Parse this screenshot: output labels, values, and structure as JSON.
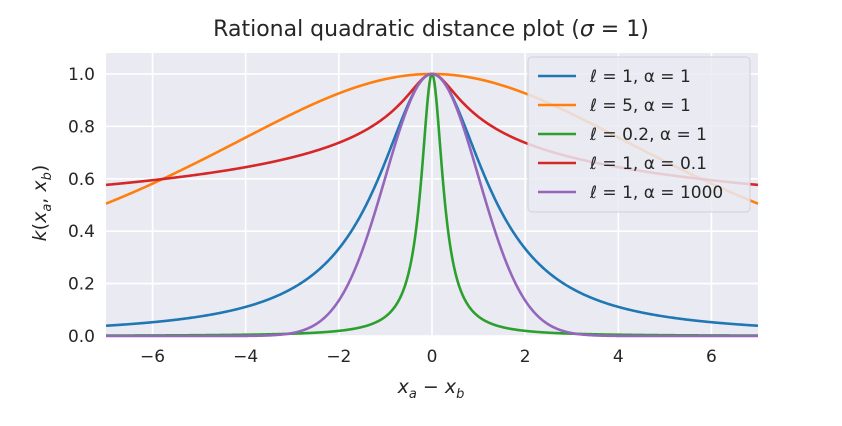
{
  "chart_data": {
    "type": "line",
    "title": "Rational quadratic distance plot (σ = 1)",
    "xlabel": "xa − xb",
    "ylabel": "k(xa, xb)",
    "xlim": [
      -7,
      7
    ],
    "ylim": [
      0,
      1.08
    ],
    "xticks": [
      -6,
      -4,
      -2,
      0,
      2,
      4,
      6
    ],
    "xtick_labels": [
      "−6",
      "−4",
      "−2",
      "0",
      "2",
      "4",
      "6"
    ],
    "yticks": [
      0,
      0.2,
      0.4,
      0.6,
      0.8,
      1.0
    ],
    "ytick_labels": [
      "0.0",
      "0.2",
      "0.4",
      "0.6",
      "0.8",
      "1.0"
    ],
    "grid": true,
    "legend_position": "top-right",
    "series": [
      {
        "name": "ℓ = 1, α = 1",
        "color": "#1f77b4",
        "formula": "rational_quadratic",
        "sigma": 1,
        "l": 1,
        "alpha": 1,
        "x": [
          -7,
          -6,
          -4,
          -2,
          0,
          2,
          4,
          6,
          7
        ],
        "y": [
          0.039,
          0.053,
          0.111,
          0.333,
          1.0,
          0.333,
          0.111,
          0.053,
          0.039
        ]
      },
      {
        "name": "ℓ = 5, α = 1",
        "color": "#ff7f0e",
        "formula": "rational_quadratic",
        "sigma": 1,
        "l": 5,
        "alpha": 1,
        "x": [
          -7,
          -6,
          -4,
          -2,
          0,
          2,
          4,
          6,
          7
        ],
        "y": [
          0.505,
          0.581,
          0.758,
          0.926,
          1.0,
          0.926,
          0.758,
          0.581,
          0.505
        ]
      },
      {
        "name": "ℓ = 0.2, α = 1",
        "color": "#2ca02c",
        "formula": "rational_quadratic",
        "sigma": 1,
        "l": 0.2,
        "alpha": 1,
        "x": [
          -7,
          -2,
          -1,
          -0.5,
          0,
          0.5,
          1,
          2,
          7
        ],
        "y": [
          0.0016,
          0.0196,
          0.074,
          0.242,
          1.0,
          0.242,
          0.074,
          0.0196,
          0.0016
        ]
      },
      {
        "name": "ℓ = 1, α = 0.1",
        "color": "#d62728",
        "formula": "rational_quadratic",
        "sigma": 1,
        "l": 1,
        "alpha": 0.1,
        "x": [
          -7,
          -6,
          -4,
          -2,
          0,
          2,
          4,
          6,
          7
        ],
        "y": [
          0.577,
          0.593,
          0.641,
          0.741,
          1.0,
          0.741,
          0.641,
          0.593,
          0.577
        ]
      },
      {
        "name": "ℓ = 1, α = 1000",
        "color": "#9467bd",
        "formula": "rational_quadratic",
        "sigma": 1,
        "l": 1,
        "alpha": 1000,
        "x": [
          -7,
          -3,
          -2,
          -1,
          0,
          1,
          2,
          3,
          7
        ],
        "y": [
          0.0,
          0.011,
          0.135,
          0.607,
          1.0,
          0.607,
          0.135,
          0.011,
          0.0
        ]
      }
    ]
  }
}
